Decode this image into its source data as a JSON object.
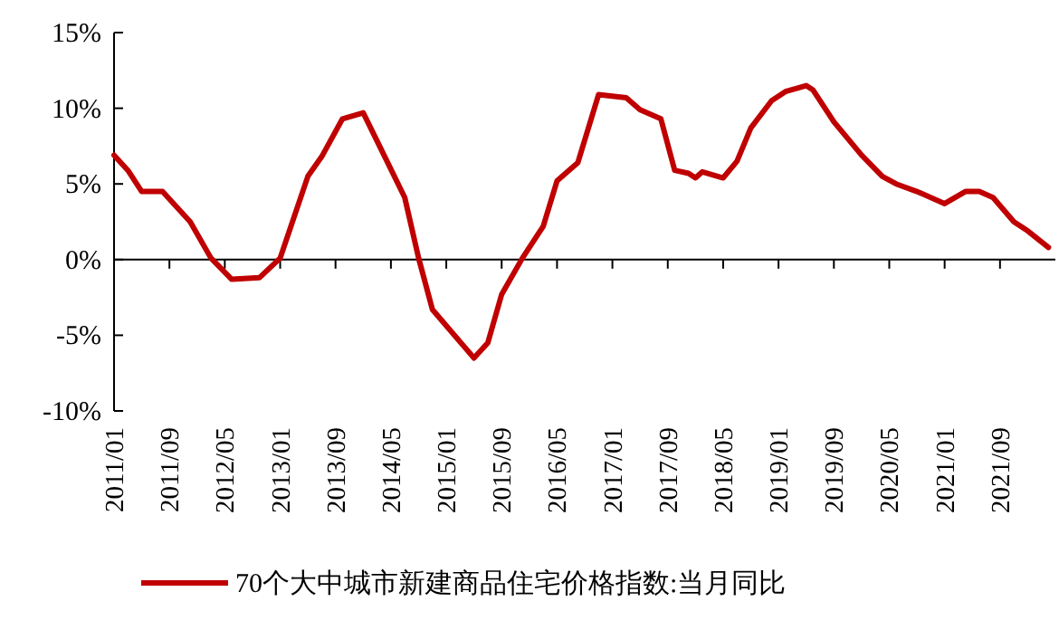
{
  "chart_data": {
    "type": "line",
    "legend": "bottom",
    "x": [
      "2011-01",
      "2011-03",
      "2011-05",
      "2011-08",
      "2011-12",
      "2012-03",
      "2012-06",
      "2012-10",
      "2013-01",
      "2013-05",
      "2013-07",
      "2013-10",
      "2014-01",
      "2014-04",
      "2014-07",
      "2014-09",
      "2014-11",
      "2015-05",
      "2015-07",
      "2015-09",
      "2015-12",
      "2016-03",
      "2016-05",
      "2016-08",
      "2016-11",
      "2017-03",
      "2017-05",
      "2017-08",
      "2017-10",
      "2017-12",
      "2018-01",
      "2018-02",
      "2018-05",
      "2018-07",
      "2018-09",
      "2018-12",
      "2019-02",
      "2019-05",
      "2019-06",
      "2019-09",
      "2020-01",
      "2020-04",
      "2020-06",
      "2020-09",
      "2021-01",
      "2021-04",
      "2021-06",
      "2021-08",
      "2021-11",
      "2022-01",
      "2022-04"
    ],
    "series": [
      {
        "name": "70个大中城市新建商品住宅价格指数:当月同比",
        "color": "#c00000",
        "values": [
          6.9,
          5.9,
          4.5,
          4.5,
          2.5,
          0.1,
          -1.3,
          -1.2,
          0.1,
          5.5,
          6.8,
          9.3,
          9.7,
          6.9,
          4.1,
          0.1,
          -3.3,
          -6.5,
          -5.5,
          -2.3,
          0.1,
          2.2,
          5.2,
          6.4,
          10.9,
          10.7,
          9.9,
          9.3,
          5.9,
          5.7,
          5.4,
          5.8,
          5.4,
          6.5,
          8.7,
          10.5,
          11.1,
          11.5,
          11.2,
          9.1,
          6.9,
          5.5,
          5.0,
          4.5,
          3.7,
          4.5,
          4.5,
          4.1,
          2.5,
          1.9,
          0.8
        ]
      }
    ],
    "xlim": [
      "2011-01",
      "2022-05"
    ],
    "xticks": [
      {
        "value": "2011-01",
        "label": "2011/01"
      },
      {
        "value": "2011-09",
        "label": "2011/09"
      },
      {
        "value": "2012-05",
        "label": "2012/05"
      },
      {
        "value": "2013-01",
        "label": "2013/01"
      },
      {
        "value": "2013-09",
        "label": "2013/09"
      },
      {
        "value": "2014-05",
        "label": "2014/05"
      },
      {
        "value": "2015-01",
        "label": "2015/01"
      },
      {
        "value": "2015-09",
        "label": "2015/09"
      },
      {
        "value": "2016-05",
        "label": "2016/05"
      },
      {
        "value": "2017-01",
        "label": "2017/01"
      },
      {
        "value": "2017-09",
        "label": "2017/09"
      },
      {
        "value": "2018-05",
        "label": "2018/05"
      },
      {
        "value": "2019-01",
        "label": "2019/01"
      },
      {
        "value": "2019-09",
        "label": "2019/09"
      },
      {
        "value": "2020-05",
        "label": "2020/05"
      },
      {
        "value": "2021-01",
        "label": "2021/01"
      },
      {
        "value": "2021-09",
        "label": "2021/09"
      }
    ],
    "ylim": [
      -10,
      15
    ],
    "yticks": [
      {
        "value": -10,
        "label": "-10%"
      },
      {
        "value": -5,
        "label": "-5%"
      },
      {
        "value": 0,
        "label": "0%"
      },
      {
        "value": 5,
        "label": "5%"
      },
      {
        "value": 10,
        "label": "10%"
      },
      {
        "value": 15,
        "label": "15%"
      }
    ]
  }
}
